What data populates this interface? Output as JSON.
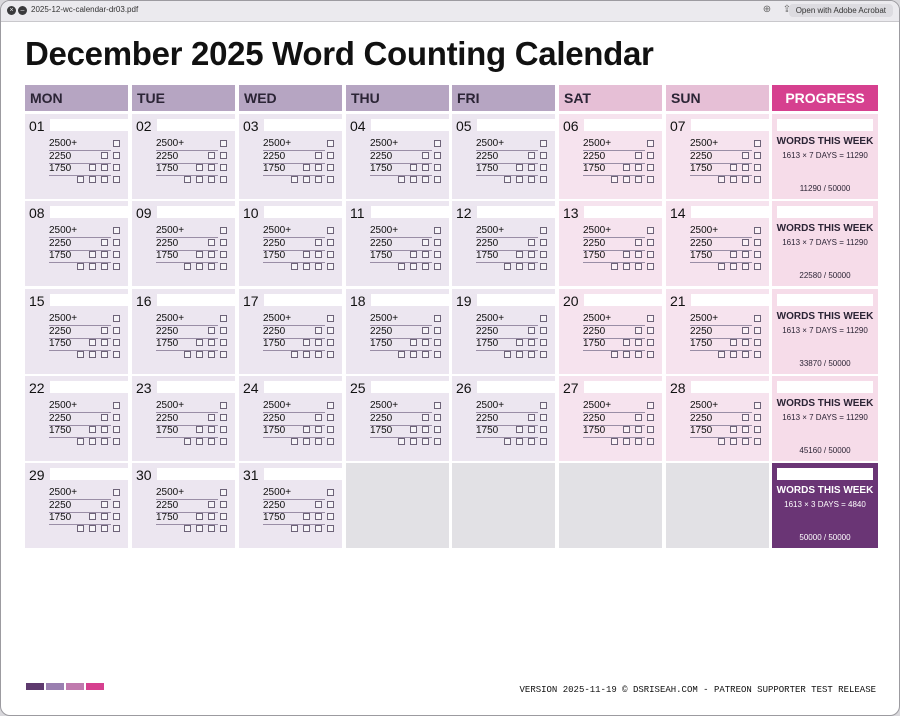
{
  "window": {
    "filename": "2025-12-wc-calendar-dr03.pdf",
    "open_with_label": "Open with Adobe Acrobat",
    "close_icon": "close-icon",
    "no-entry-icon": "no-entry-icon"
  },
  "calendar": {
    "title": "December 2025 Word Counting Calendar",
    "weekdays": [
      "MON",
      "TUE",
      "WED",
      "THU",
      "FRI",
      "SAT",
      "SUN"
    ],
    "progress_header": "PROGRESS",
    "goal_labels": [
      "2500+",
      "2250",
      "1750"
    ],
    "weeks": [
      {
        "days": [
          "01",
          "02",
          "03",
          "04",
          "05",
          "06",
          "07"
        ],
        "progress": {
          "title": "WORDS THIS WEEK",
          "formula": "1613 × 7 DAYS = 11290",
          "total": "11290 / 50000"
        }
      },
      {
        "days": [
          "08",
          "09",
          "10",
          "11",
          "12",
          "13",
          "14"
        ],
        "progress": {
          "title": "WORDS THIS WEEK",
          "formula": "1613 × 7 DAYS = 11290",
          "total": "22580 / 50000"
        }
      },
      {
        "days": [
          "15",
          "16",
          "17",
          "18",
          "19",
          "20",
          "21"
        ],
        "progress": {
          "title": "WORDS THIS WEEK",
          "formula": "1613 × 7 DAYS = 11290",
          "total": "33870 / 50000"
        }
      },
      {
        "days": [
          "22",
          "23",
          "24",
          "25",
          "26",
          "27",
          "28"
        ],
        "progress": {
          "title": "WORDS THIS WEEK",
          "formula": "1613 × 7 DAYS = 11290",
          "total": "45160 / 50000"
        }
      },
      {
        "days": [
          "29",
          "30",
          "31",
          "",
          "",
          "",
          ""
        ],
        "progress": {
          "title": "WORDS THIS WEEK",
          "formula": "1613 × 3 DAYS = 4840",
          "total": "50000 / 50000"
        }
      }
    ]
  },
  "colors": {
    "weekday_header": "#b6a5c2",
    "weekend_header": "#e6bfd6",
    "progress_header": "#d6408f",
    "weekday_cell": "#ece6f0",
    "weekend_cell": "#f6e3ee",
    "progress_cell": "#f6dce9",
    "final_progress": "#6a3575",
    "empty_cell": "#e2e1e5",
    "swatches": [
      "#5e3a6e",
      "#9a7fb0",
      "#c07aae",
      "#d6408f"
    ]
  },
  "footer": {
    "version": "VERSION 2025-11-19 © DSRISEAH.COM - PATREON SUPPORTER TEST RELEASE"
  }
}
